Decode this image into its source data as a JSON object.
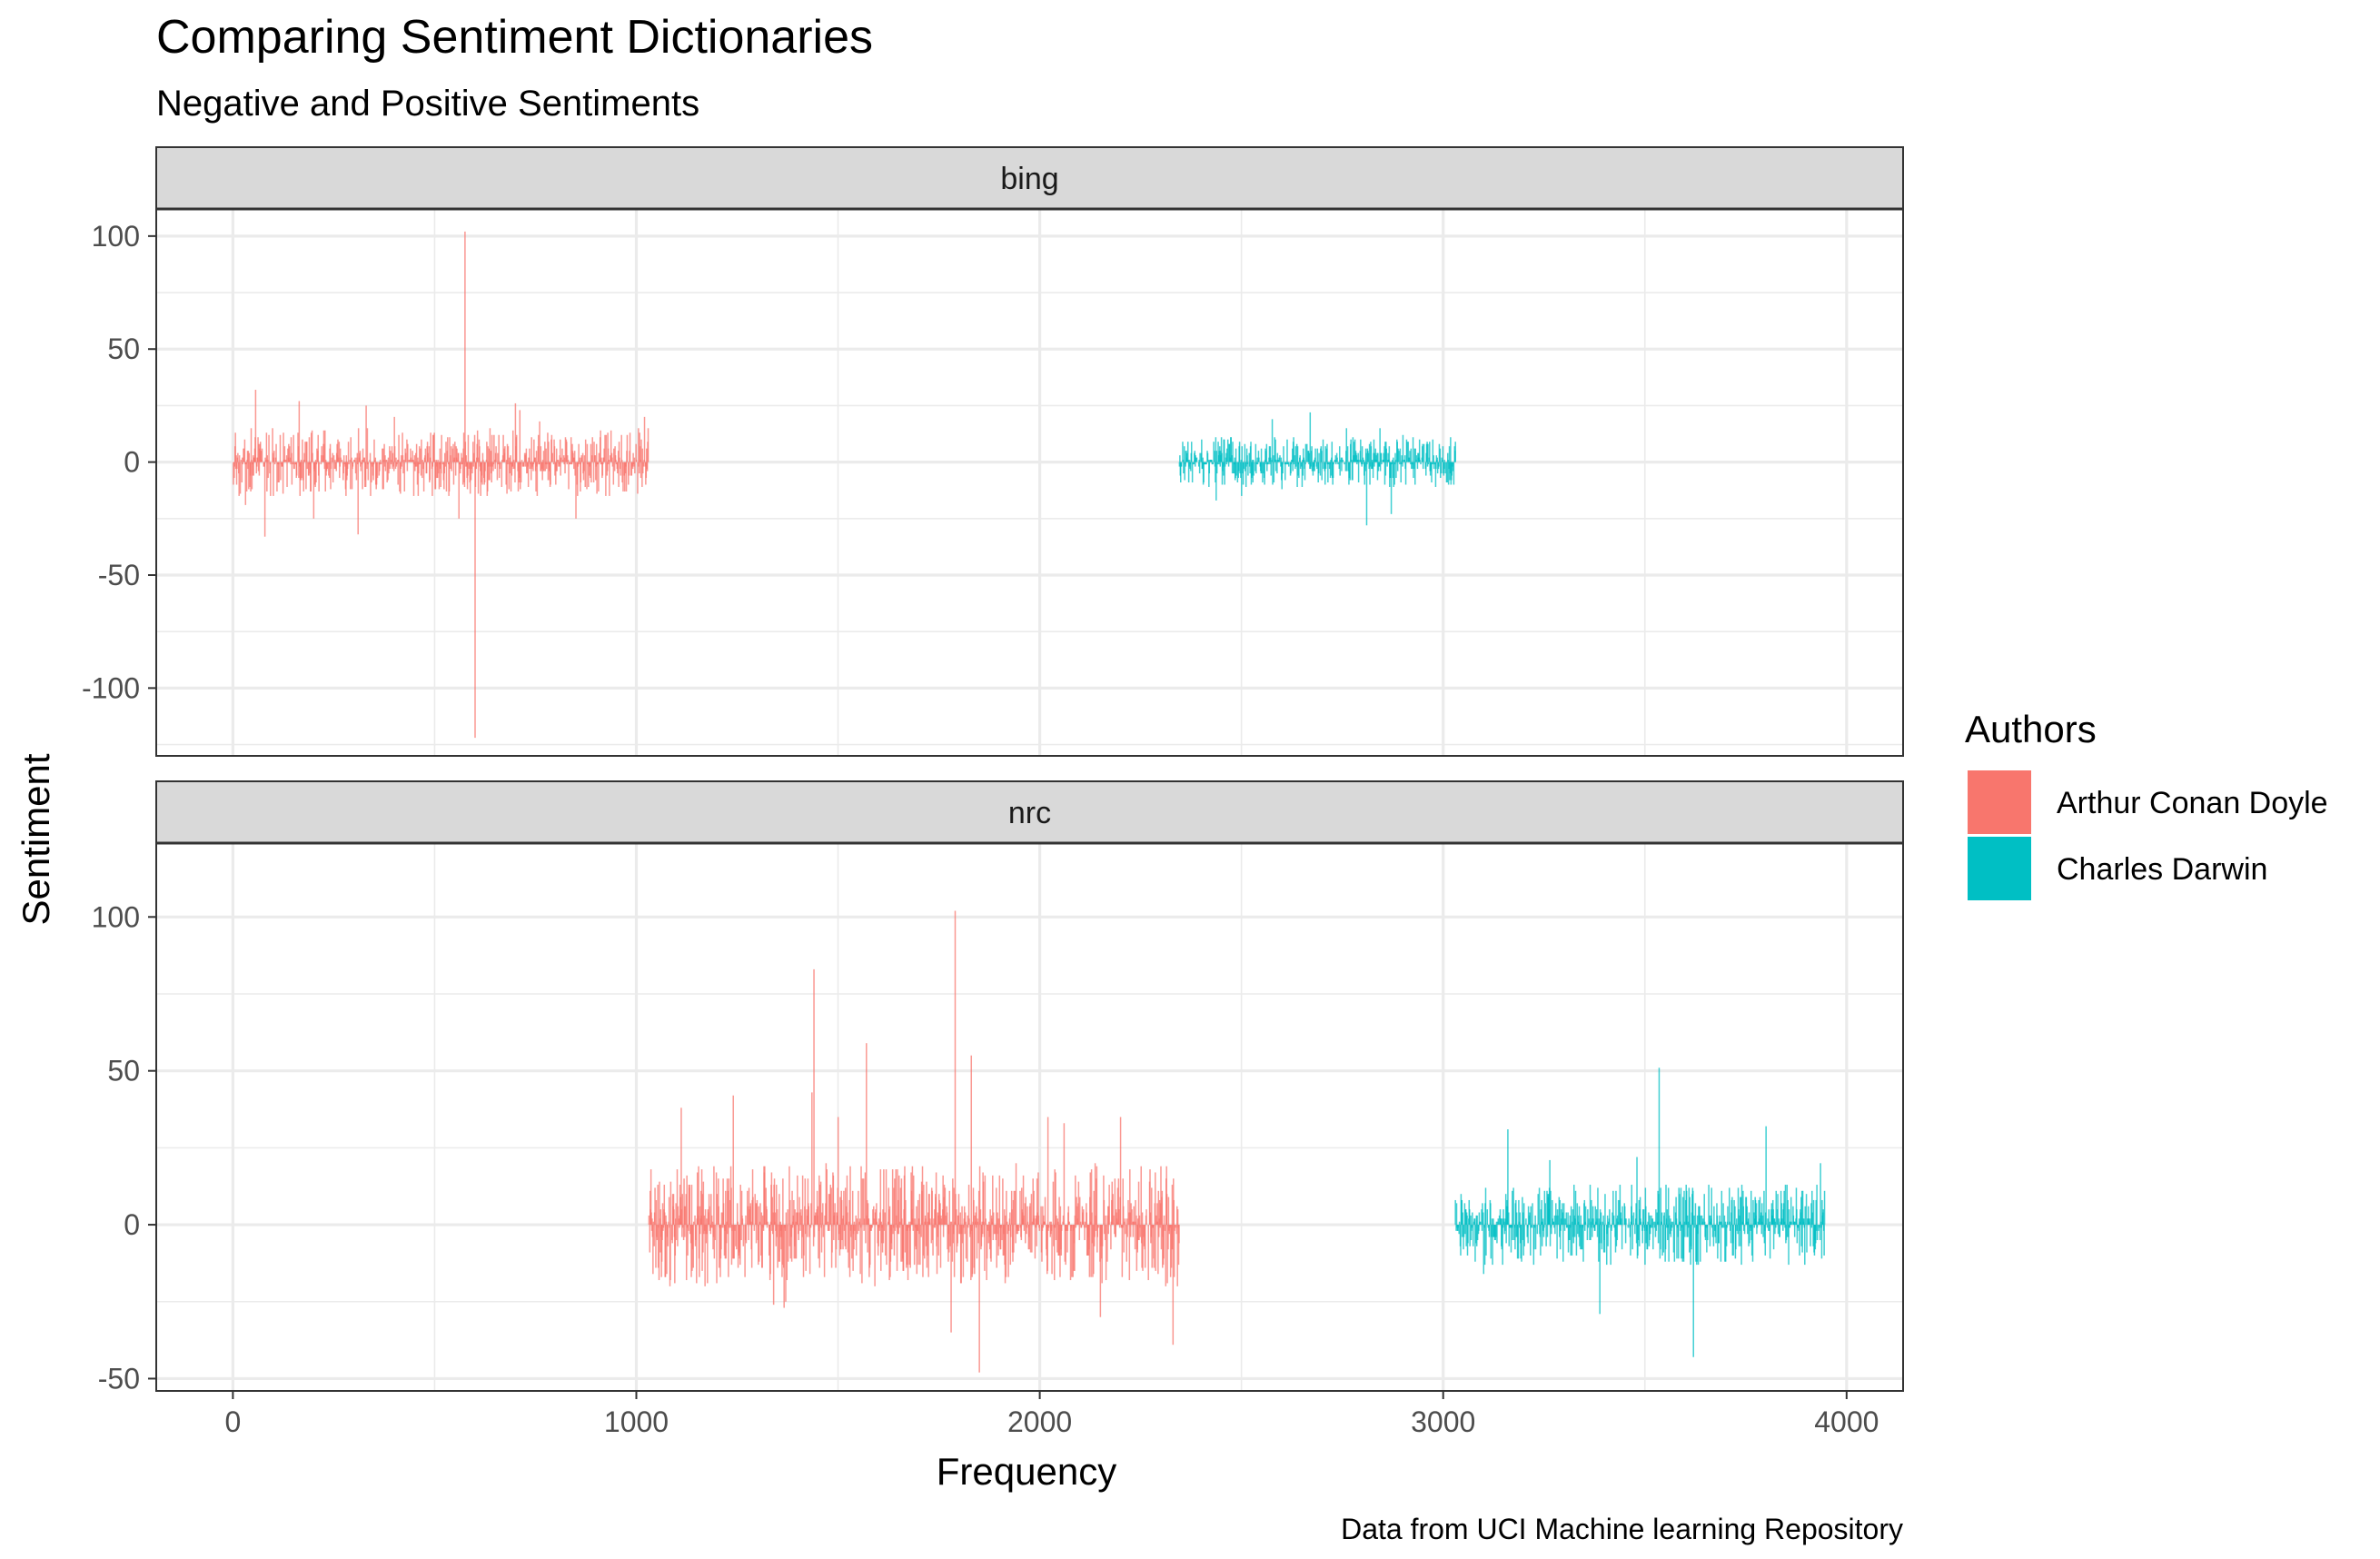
{
  "chart_data": {
    "type": "bar",
    "title": "Comparing Sentiment Dictionaries",
    "subtitle": "Negative and Positive Sentiments",
    "xlabel": "Frequency",
    "ylabel": "Sentiment",
    "caption": "Data from UCI Machine learning Repository",
    "xlim": [
      -190,
      4140
    ],
    "x_ticks": [
      0,
      1000,
      2000,
      3000,
      4000
    ],
    "grid": true,
    "legend": {
      "title": "Authors",
      "position": "right",
      "entries": [
        {
          "name": "Arthur Conan Doyle",
          "color": "#F8766D"
        },
        {
          "name": "Charles Darwin",
          "color": "#00BFC4"
        }
      ]
    },
    "panels": [
      {
        "strip": "bing",
        "ylim": [
          -130,
          112
        ],
        "y_ticks": [
          -100,
          -50,
          0,
          50,
          100
        ],
        "series": [
          {
            "name": "Arthur Conan Doyle",
            "x_range": [
              0,
              1030
            ],
            "typical_amplitude": 7,
            "notable_points": [
              {
                "x": 575,
                "y": 102
              },
              {
                "x": 600,
                "y": -122
              },
              {
                "x": 700,
                "y": 26
              },
              {
                "x": 330,
                "y": 25
              },
              {
                "x": 560,
                "y": -25
              },
              {
                "x": 850,
                "y": -25
              },
              {
                "x": 200,
                "y": -25
              },
              {
                "x": 1020,
                "y": 20
              },
              {
                "x": 760,
                "y": 18
              },
              {
                "x": 400,
                "y": 20
              }
            ]
          },
          {
            "name": "Charles Darwin",
            "x_range": [
              2345,
              3030
            ],
            "typical_amplitude": 5,
            "notable_points": [
              {
                "x": 2810,
                "y": -28
              },
              {
                "x": 2670,
                "y": 22
              },
              {
                "x": 2760,
                "y": 15
              },
              {
                "x": 2500,
                "y": -15
              },
              {
                "x": 2600,
                "y": -12
              },
              {
                "x": 2900,
                "y": 12
              }
            ]
          }
        ]
      },
      {
        "strip": "nrc",
        "ylim": [
          -54,
          124
        ],
        "y_ticks": [
          -50,
          0,
          50,
          100
        ],
        "series": [
          {
            "name": "Arthur Conan Doyle",
            "x_range": [
              1030,
              2345
            ],
            "typical_amplitude": 9,
            "notable_points": [
              {
                "x": 1790,
                "y": 102
              },
              {
                "x": 1440,
                "y": 83
              },
              {
                "x": 1570,
                "y": 59
              },
              {
                "x": 1850,
                "y": -48
              },
              {
                "x": 1830,
                "y": 55
              },
              {
                "x": 1240,
                "y": 42
              },
              {
                "x": 2330,
                "y": 42
              },
              {
                "x": 2330,
                "y": -39
              },
              {
                "x": 1780,
                "y": -35
              },
              {
                "x": 2150,
                "y": -30
              },
              {
                "x": 1340,
                "y": -26
              },
              {
                "x": 1170,
                "y": -20
              },
              {
                "x": 2060,
                "y": 33
              },
              {
                "x": 1500,
                "y": 35
              },
              {
                "x": 2200,
                "y": 35
              }
            ]
          },
          {
            "name": "Charles Darwin",
            "x_range": [
              3030,
              3945
            ],
            "typical_amplitude": 6,
            "notable_points": [
              {
                "x": 3535,
                "y": 51
              },
              {
                "x": 3620,
                "y": -43
              },
              {
                "x": 3800,
                "y": 32
              },
              {
                "x": 3160,
                "y": 31
              },
              {
                "x": 3935,
                "y": 20
              },
              {
                "x": 3100,
                "y": -16
              },
              {
                "x": 3480,
                "y": 22
              },
              {
                "x": 3700,
                "y": -12
              },
              {
                "x": 3920,
                "y": -10
              }
            ]
          }
        ]
      }
    ]
  }
}
